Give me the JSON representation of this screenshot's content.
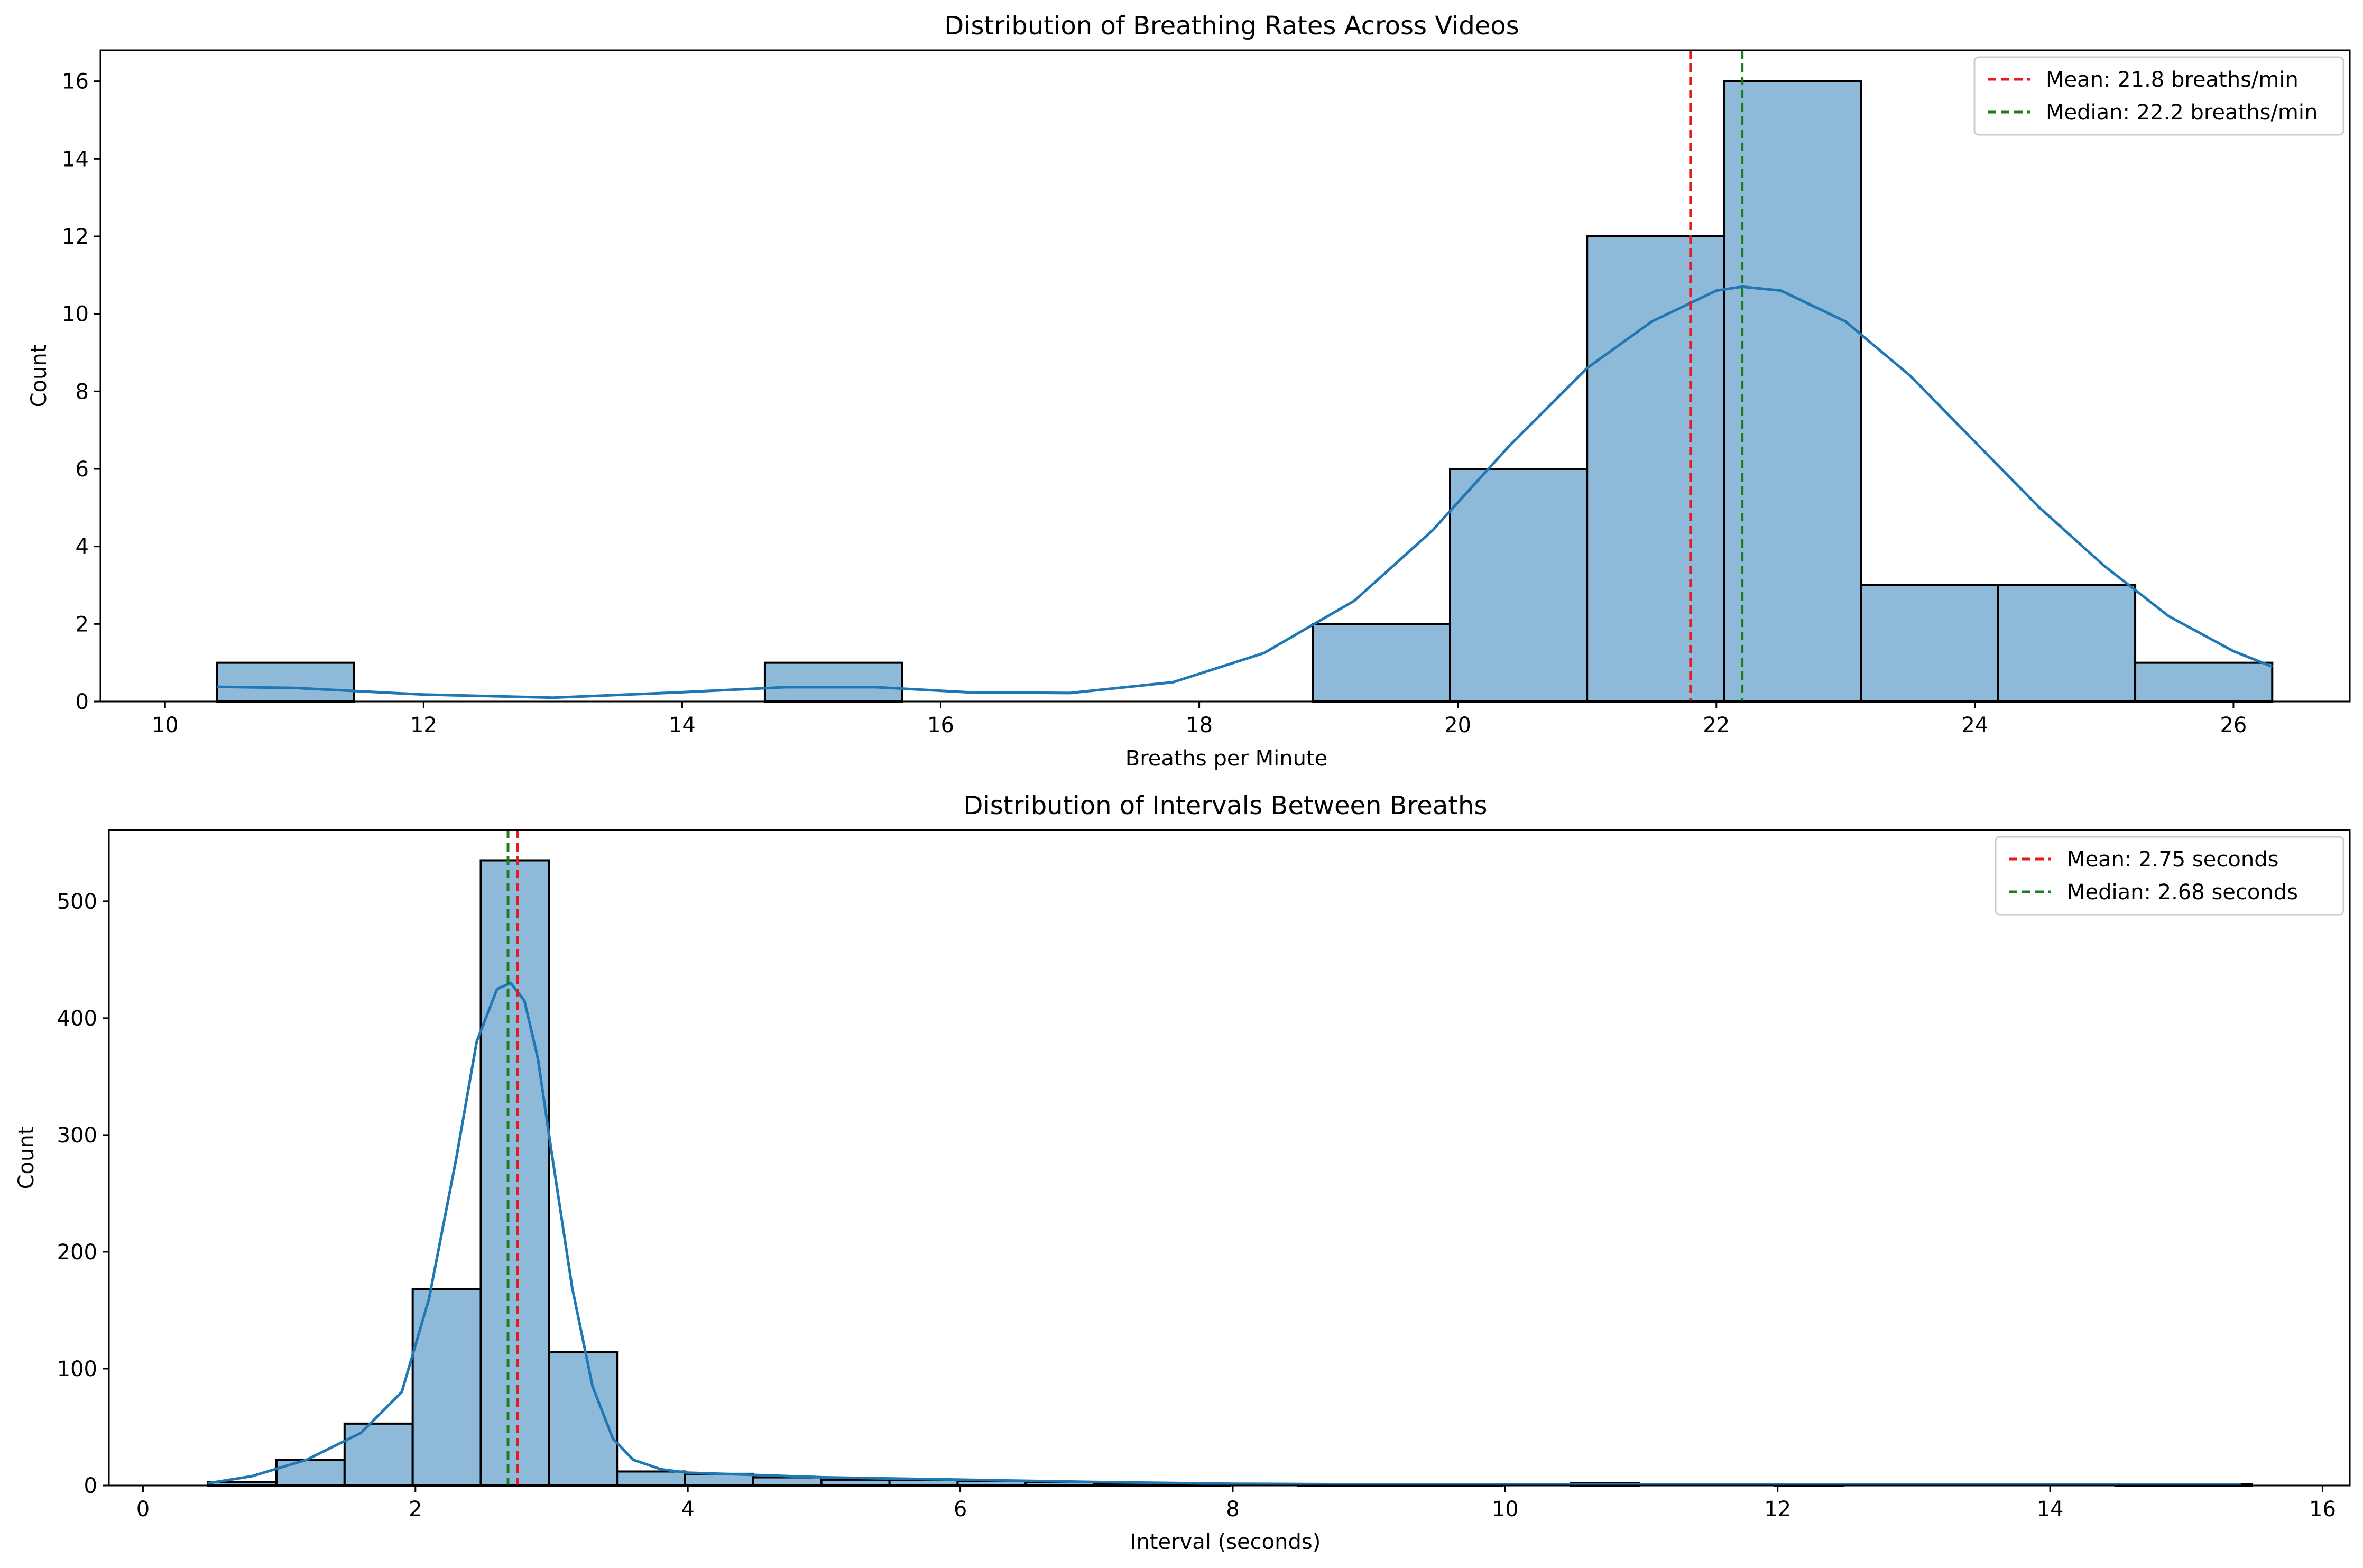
{
  "chart_data": [
    {
      "type": "bar",
      "title": "Distribution of Breathing Rates Across Videos",
      "xlabel": "Breaths per Minute",
      "ylabel": "Count",
      "xlim": [
        9.5,
        26.9
      ],
      "ylim": [
        0,
        16.8
      ],
      "xticks": [
        10,
        12,
        14,
        16,
        18,
        20,
        22,
        24,
        26
      ],
      "yticks": [
        0,
        2,
        4,
        6,
        8,
        10,
        12,
        14,
        16
      ],
      "bin_edges": [
        10.4,
        11.46,
        12.52,
        13.58,
        14.64,
        15.7,
        16.76,
        17.82,
        18.88,
        19.94,
        21.0,
        22.06,
        23.12,
        24.18,
        25.24,
        26.3
      ],
      "values": [
        1,
        0,
        0,
        0,
        1,
        0,
        0,
        0,
        2,
        6,
        12,
        16,
        3,
        3,
        1
      ],
      "kde": {
        "x": [
          10.4,
          11.0,
          12.0,
          13.0,
          14.0,
          14.8,
          15.5,
          16.2,
          17.0,
          17.8,
          18.5,
          19.2,
          19.8,
          20.4,
          21.0,
          21.5,
          22.0,
          22.2,
          22.5,
          23.0,
          23.5,
          24.0,
          24.5,
          25.0,
          25.5,
          26.0,
          26.3
        ],
        "y": [
          0.38,
          0.35,
          0.18,
          0.1,
          0.24,
          0.37,
          0.37,
          0.24,
          0.22,
          0.5,
          1.25,
          2.6,
          4.4,
          6.6,
          8.6,
          9.8,
          10.6,
          10.7,
          10.6,
          9.8,
          8.4,
          6.7,
          5.0,
          3.5,
          2.2,
          1.3,
          0.9
        ]
      },
      "mean_line": {
        "value": 21.8,
        "label": "Mean: 21.8 breaths/min"
      },
      "median_line": {
        "value": 22.2,
        "label": "Median: 22.2 breaths/min"
      },
      "legend_position": "upper right"
    },
    {
      "type": "bar",
      "title": "Distribution of Intervals Between Breaths",
      "xlabel": "Interval (seconds)",
      "ylabel": "Count",
      "xlim": [
        -0.25,
        16.2
      ],
      "ylim": [
        0,
        561
      ],
      "xticks": [
        0,
        2,
        4,
        6,
        8,
        10,
        12,
        14,
        16
      ],
      "yticks": [
        0,
        100,
        200,
        300,
        400,
        500
      ],
      "bin_edges": [
        0.48,
        0.98,
        1.48,
        1.98,
        2.48,
        2.98,
        3.48,
        3.98,
        4.48,
        4.98,
        5.48,
        5.98,
        6.48,
        6.98,
        7.48,
        7.98,
        8.48,
        8.98,
        9.48,
        9.98,
        10.48,
        10.98,
        11.48,
        11.98,
        12.48,
        12.98,
        13.48,
        13.98,
        14.48,
        14.98,
        15.48
      ],
      "values": [
        3,
        22,
        53,
        168,
        535,
        114,
        12,
        10,
        7,
        5,
        5,
        4,
        3,
        1,
        1,
        0,
        1,
        1,
        1,
        0,
        2,
        0,
        0,
        1,
        0,
        0,
        0,
        0,
        1,
        1
      ],
      "kde": {
        "x": [
          0.48,
          0.8,
          1.2,
          1.6,
          1.9,
          2.1,
          2.3,
          2.45,
          2.6,
          2.7,
          2.8,
          2.9,
          3.0,
          3.15,
          3.3,
          3.45,
          3.6,
          3.8,
          4.0,
          4.5,
          5.0,
          6.0,
          7.0,
          8.0,
          9.0,
          10.0,
          11.0,
          12.0,
          13.0,
          14.0,
          15.4
        ],
        "y": [
          2,
          8,
          22,
          45,
          80,
          160,
          280,
          380,
          425,
          430,
          415,
          365,
          285,
          170,
          85,
          40,
          22,
          14,
          11,
          9,
          7,
          5,
          3,
          1.5,
          1,
          1,
          1,
          1,
          1,
          1,
          1
        ]
      },
      "mean_line": {
        "value": 2.75,
        "label": "Mean: 2.75 seconds"
      },
      "median_line": {
        "value": 2.68,
        "label": "Median: 2.68 seconds"
      },
      "legend_position": "upper right"
    }
  ],
  "colors": {
    "bar_fill": "#8fb9d9",
    "kde": "#1f77b4",
    "mean": "#e41a1c",
    "median": "#1a7f1a"
  }
}
